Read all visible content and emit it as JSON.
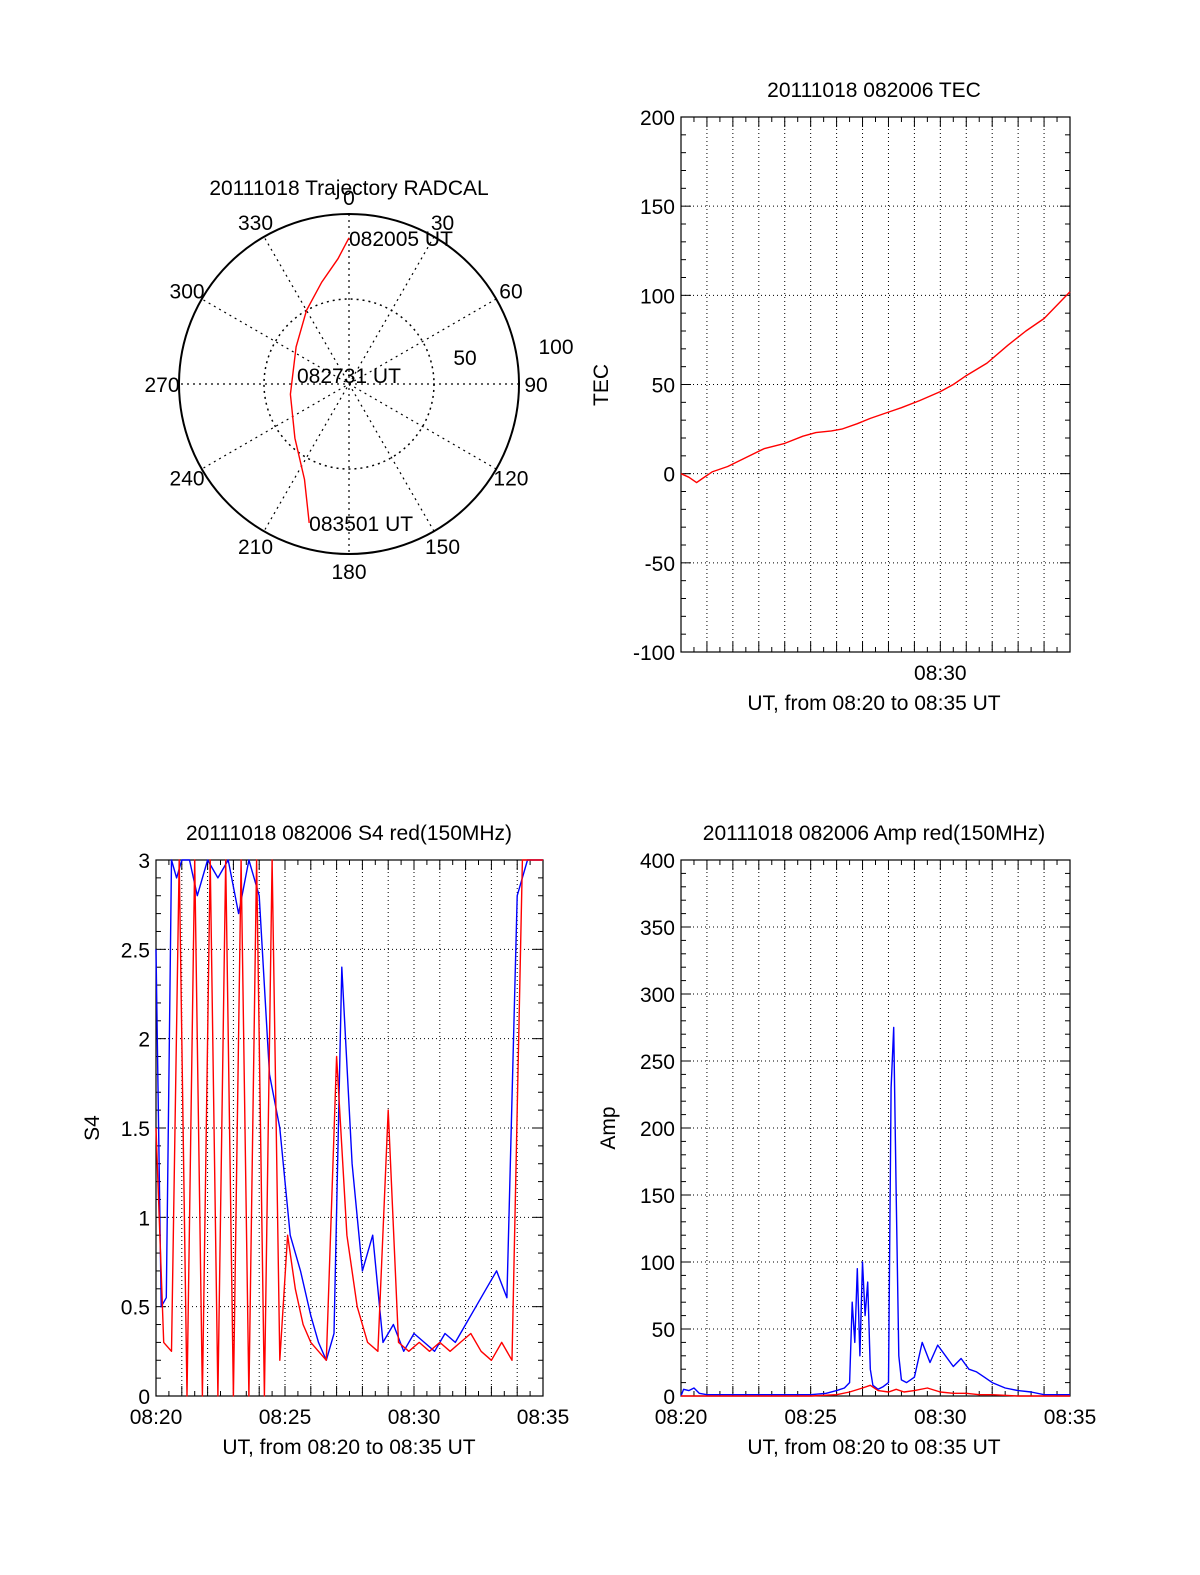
{
  "chart_data": [
    {
      "id": "trajectory",
      "type": "polar",
      "title": "20111018 Trajectory RADCAL",
      "azimuth_labels": [
        "0",
        "30",
        "60",
        "90",
        "120",
        "150",
        "180",
        "210",
        "240",
        "270",
        "300",
        "330"
      ],
      "ring_labels": [
        "50",
        "100"
      ],
      "rings_elevation": [
        50,
        100
      ],
      "track": [
        {
          "az": 0,
          "r": 0.86
        },
        {
          "az": 355,
          "r": 0.74
        },
        {
          "az": 345,
          "r": 0.62
        },
        {
          "az": 330,
          "r": 0.5
        },
        {
          "az": 305,
          "r": 0.38
        },
        {
          "az": 260,
          "r": 0.35
        },
        {
          "az": 225,
          "r": 0.45
        },
        {
          "az": 205,
          "r": 0.62
        },
        {
          "az": 196,
          "r": 0.85
        }
      ],
      "annotations": [
        {
          "text": "082005 UT",
          "at": "start"
        },
        {
          "text": "082731 UT",
          "at": "middle"
        },
        {
          "text": "083501 UT",
          "at": "end"
        }
      ],
      "series_color": "#ff0000"
    },
    {
      "id": "tec",
      "type": "line",
      "title": "20111018 082006 TEC",
      "xlabel": "UT, from 08:20 to 08:35 UT",
      "ylabel": "TEC",
      "xlim": [
        0,
        15
      ],
      "ylim": [
        -100,
        200
      ],
      "yticks": [
        -100,
        -50,
        0,
        50,
        100,
        150,
        200
      ],
      "xtick_labels": [
        {
          "x": 10,
          "label": "08:30"
        }
      ],
      "grid_x": [
        1,
        2,
        3,
        4,
        5,
        6,
        7,
        8,
        9,
        10,
        11,
        12,
        13,
        14
      ],
      "grid_y": [
        -50,
        0,
        50,
        100,
        150
      ],
      "series": [
        {
          "color": "#ff0000",
          "x": [
            0,
            0.3,
            0.6,
            0.8,
            1.2,
            1.8,
            2.5,
            3.2,
            4.0,
            4.7,
            5.2,
            5.8,
            6.2,
            6.8,
            7.3,
            7.9,
            8.5,
            9.2,
            10.0,
            10.5,
            11.0,
            11.8,
            12.6,
            13.3,
            14.0,
            14.6,
            15.0
          ],
          "y": [
            0,
            -2,
            -5,
            -3,
            1,
            4,
            9,
            14,
            17,
            21,
            23,
            24,
            25,
            28,
            31,
            34,
            37,
            41,
            46,
            50,
            55,
            62,
            72,
            80,
            87,
            96,
            102
          ]
        }
      ]
    },
    {
      "id": "s4",
      "type": "line",
      "title": "20111018 082006 S4 red(150MHz)",
      "xlabel": "UT, from 08:20 to 08:35 UT",
      "ylabel": "S4",
      "xlim": [
        0,
        15
      ],
      "ylim": [
        0,
        3
      ],
      "yticks": [
        0,
        0.5,
        1,
        1.5,
        2,
        2.5,
        3
      ],
      "ytick_labels": [
        "0",
        "0.5",
        "1",
        "1.5",
        "2",
        "2.5",
        "3"
      ],
      "xtick_labels": [
        {
          "x": 0,
          "label": "08:20"
        },
        {
          "x": 5,
          "label": "08:25"
        },
        {
          "x": 10,
          "label": "08:30"
        },
        {
          "x": 15,
          "label": "08:35"
        }
      ],
      "grid_x": [
        1,
        2,
        3,
        4,
        5,
        6,
        7,
        8,
        9,
        10,
        11,
        12,
        13,
        14
      ],
      "grid_y": [
        0.5,
        1,
        1.5,
        2,
        2.5
      ],
      "series": [
        {
          "color": "#0000ff",
          "x": [
            0,
            0.2,
            0.4,
            0.6,
            0.8,
            1.0,
            1.3,
            1.6,
            2.0,
            2.4,
            2.8,
            3.2,
            3.6,
            4.0,
            4.4,
            4.8,
            5.2,
            5.6,
            6.0,
            6.3,
            6.6,
            6.9,
            7.2,
            7.6,
            8.0,
            8.4,
            8.8,
            9.2,
            9.6,
            10.0,
            10.4,
            10.8,
            11.2,
            11.6,
            12.0,
            12.4,
            12.8,
            13.2,
            13.6,
            14.0,
            14.4,
            14.8,
            15.0
          ],
          "y": [
            2.5,
            0.5,
            0.55,
            3,
            2.9,
            3,
            3,
            2.8,
            3,
            2.9,
            3,
            2.7,
            3,
            2.8,
            1.8,
            1.5,
            0.9,
            0.7,
            0.45,
            0.3,
            0.2,
            0.35,
            2.4,
            1.3,
            0.7,
            0.9,
            0.3,
            0.4,
            0.25,
            0.35,
            0.3,
            0.25,
            0.35,
            0.3,
            0.4,
            0.5,
            0.6,
            0.7,
            0.55,
            2.8,
            3,
            3,
            3
          ]
        },
        {
          "color": "#ff0000",
          "x": [
            0,
            0.3,
            0.6,
            0.9,
            1.2,
            1.5,
            1.8,
            2.1,
            2.4,
            2.7,
            3.0,
            3.3,
            3.6,
            3.9,
            4.2,
            4.5,
            4.8,
            5.1,
            5.4,
            5.7,
            6.0,
            6.3,
            6.6,
            7.0,
            7.4,
            7.8,
            8.2,
            8.6,
            9.0,
            9.4,
            9.8,
            10.2,
            10.6,
            11.0,
            11.4,
            11.8,
            12.2,
            12.6,
            13.0,
            13.4,
            13.8,
            14.2,
            14.6,
            15.0
          ],
          "y": [
            1.5,
            0.3,
            0.25,
            3,
            0,
            3,
            0,
            3,
            0,
            3,
            0,
            3,
            0,
            3,
            0,
            3,
            0.2,
            0.9,
            0.6,
            0.4,
            0.3,
            0.25,
            0.2,
            1.9,
            0.9,
            0.5,
            0.3,
            0.25,
            1.6,
            0.3,
            0.25,
            0.3,
            0.25,
            0.3,
            0.25,
            0.3,
            0.35,
            0.25,
            0.2,
            0.3,
            0.2,
            3,
            3,
            3
          ]
        }
      ]
    },
    {
      "id": "amp",
      "type": "line",
      "title": "20111018 082006 Amp red(150MHz)",
      "xlabel": "UT, from 08:20 to 08:35 UT",
      "ylabel": "Amp",
      "xlim": [
        0,
        15
      ],
      "ylim": [
        0,
        400
      ],
      "yticks": [
        0,
        50,
        100,
        150,
        200,
        250,
        300,
        350,
        400
      ],
      "xtick_labels": [
        {
          "x": 0,
          "label": "08:20"
        },
        {
          "x": 5,
          "label": "08:25"
        },
        {
          "x": 10,
          "label": "08:30"
        },
        {
          "x": 15,
          "label": "08:35"
        }
      ],
      "grid_x": [
        1,
        2,
        3,
        4,
        5,
        6,
        7,
        8,
        9,
        10,
        11,
        12,
        13,
        14
      ],
      "grid_y": [
        50,
        100,
        150,
        200,
        250,
        300,
        350
      ],
      "series": [
        {
          "color": "#0000ff",
          "x": [
            0,
            0.1,
            0.3,
            0.5,
            0.7,
            1.0,
            2.0,
            3.0,
            4.0,
            5.0,
            5.6,
            6.0,
            6.3,
            6.5,
            6.6,
            6.7,
            6.8,
            6.9,
            7.0,
            7.1,
            7.2,
            7.3,
            7.4,
            7.6,
            7.8,
            8.0,
            8.1,
            8.2,
            8.3,
            8.4,
            8.5,
            8.7,
            9.0,
            9.3,
            9.6,
            9.9,
            10.2,
            10.5,
            10.8,
            11.1,
            11.4,
            11.7,
            12.0,
            12.5,
            13.0,
            13.5,
            14.0,
            14.5,
            15.0
          ],
          "y": [
            0,
            5,
            4,
            6,
            2,
            1,
            1,
            1,
            1,
            1,
            2,
            4,
            6,
            10,
            70,
            40,
            95,
            30,
            100,
            60,
            85,
            20,
            8,
            5,
            7,
            10,
            230,
            275,
            150,
            30,
            12,
            10,
            14,
            40,
            25,
            38,
            30,
            22,
            28,
            20,
            18,
            14,
            10,
            6,
            4,
            3,
            1,
            1,
            1
          ]
        },
        {
          "color": "#ff0000",
          "x": [
            0,
            1,
            2,
            3,
            4,
            5,
            6,
            6.5,
            7.0,
            7.3,
            7.6,
            8.0,
            8.3,
            8.6,
            9.0,
            9.5,
            10.0,
            10.5,
            11.0,
            11.5,
            12.0,
            13.0,
            14.0,
            15.0
          ],
          "y": [
            0,
            0,
            0,
            0,
            0,
            0,
            1,
            3,
            6,
            8,
            4,
            3,
            5,
            3,
            4,
            6,
            3,
            2,
            2,
            1,
            1,
            0,
            0,
            0
          ]
        }
      ]
    }
  ]
}
